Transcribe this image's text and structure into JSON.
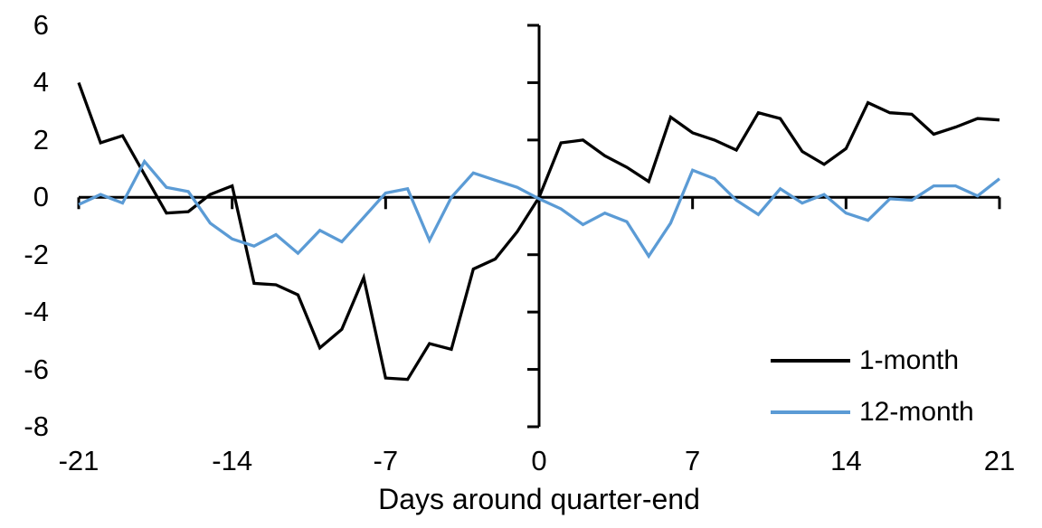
{
  "chart_data": {
    "type": "line",
    "title": "",
    "xlabel": "Days around quarter-end",
    "ylabel": "",
    "xlim": [
      -21,
      21
    ],
    "ylim": [
      -8,
      6
    ],
    "x_ticks": [
      -21,
      -14,
      -7,
      0,
      7,
      14,
      21
    ],
    "y_ticks": [
      6,
      4,
      2,
      0,
      -2,
      -4,
      -6,
      -8
    ],
    "grid": false,
    "legend_position": "inside-bottom-right",
    "axis_color": "#000000",
    "x": [
      -21,
      -20,
      -19,
      -18,
      -17,
      -16,
      -15,
      -14,
      -13,
      -12,
      -11,
      -10,
      -9,
      -8,
      -7,
      -6,
      -5,
      -4,
      -3,
      -2,
      -1,
      0,
      1,
      2,
      3,
      4,
      5,
      6,
      7,
      8,
      9,
      10,
      11,
      12,
      13,
      14,
      15,
      16,
      17,
      18,
      19,
      20,
      21
    ],
    "series": [
      {
        "name": "1-month",
        "color": "#000000",
        "values": [
          4.0,
          1.9,
          2.15,
          0.8,
          -0.55,
          -0.5,
          0.1,
          0.4,
          -3.0,
          -3.05,
          -3.4,
          -5.25,
          -4.6,
          -2.8,
          -6.3,
          -6.35,
          -5.1,
          -5.3,
          -2.5,
          -2.15,
          -1.2,
          0.0,
          1.9,
          2.0,
          1.45,
          1.05,
          0.55,
          2.8,
          2.25,
          2.0,
          1.65,
          2.95,
          2.75,
          1.6,
          1.15,
          1.7,
          3.3,
          2.95,
          2.9,
          2.2,
          2.45,
          2.75,
          2.7
        ]
      },
      {
        "name": "12-month",
        "color": "#5B9BD5",
        "values": [
          -0.25,
          0.1,
          -0.2,
          1.25,
          0.35,
          0.2,
          -0.9,
          -1.45,
          -1.7,
          -1.3,
          -1.95,
          -1.15,
          -1.55,
          -0.7,
          0.15,
          0.3,
          -1.5,
          0.0,
          0.85,
          0.6,
          0.35,
          -0.05,
          -0.4,
          -0.95,
          -0.55,
          -0.85,
          -2.05,
          -0.9,
          0.95,
          0.65,
          -0.1,
          -0.6,
          0.3,
          -0.2,
          0.1,
          -0.55,
          -0.8,
          -0.05,
          -0.1,
          0.4,
          0.4,
          0.05,
          0.65
        ]
      }
    ]
  }
}
